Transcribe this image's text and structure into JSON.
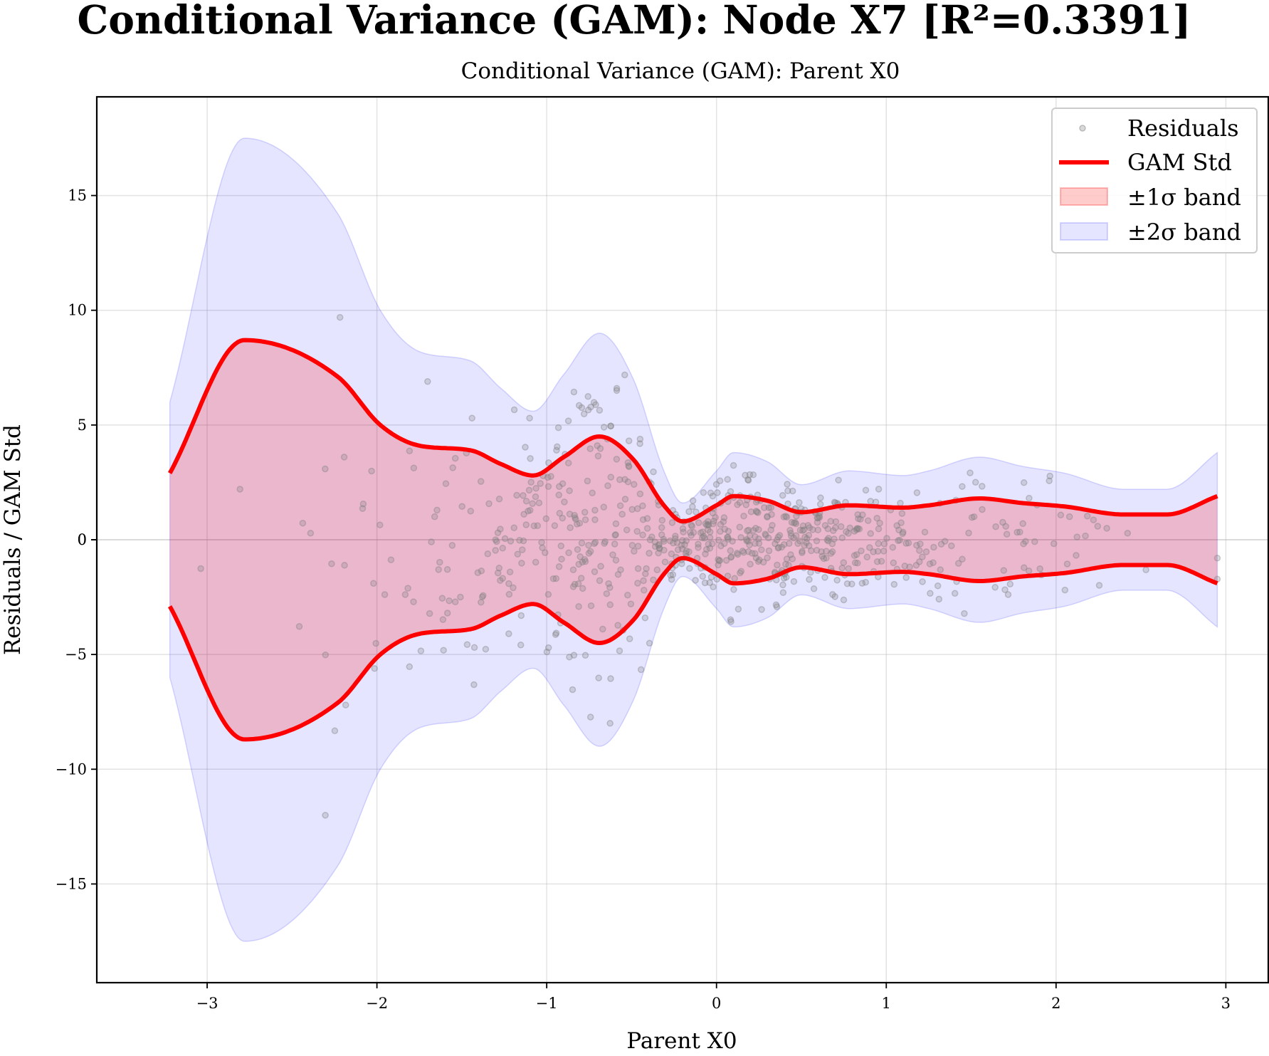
{
  "figure": {
    "suptitle": "Conditional Variance (GAM): Node X7 [R²=0.3391]"
  },
  "chart_data": {
    "type": "scatter",
    "title": "Conditional Variance (GAM): Parent X0",
    "xlabel": "Parent X0",
    "ylabel": "Residuals / GAM Std",
    "xlim": [
      -3.65,
      3.25
    ],
    "ylim": [
      -19.3,
      19.3
    ],
    "grid": true,
    "legend_position": "upper right",
    "xticks": [
      -3,
      -2,
      -1,
      0,
      1,
      2,
      3
    ],
    "xtick_labels": [
      "−3",
      "−2",
      "−1",
      "0",
      "1",
      "2",
      "3"
    ],
    "yticks": [
      -15,
      -10,
      -5,
      0,
      5,
      10,
      15
    ],
    "ytick_labels": [
      "−15",
      "−10",
      "−5",
      "0",
      "5",
      "10",
      "15"
    ],
    "legend": [
      {
        "label": "Residuals",
        "kind": "marker"
      },
      {
        "label": "GAM Std",
        "kind": "line"
      },
      {
        "label": "±1σ band",
        "kind": "patch-red"
      },
      {
        "label": "±2σ band",
        "kind": "patch-blue"
      }
    ],
    "colors": {
      "gam_std": "#ff0000",
      "band1": "#ff0000",
      "band2": "#0000ff",
      "residuals": "#808080"
    },
    "gam_std": {
      "x": [
        -3.22,
        -2.78,
        -2.23,
        -1.98,
        -1.75,
        -1.45,
        -1.27,
        -1.08,
        -0.9,
        -0.69,
        -0.49,
        -0.31,
        -0.2,
        0,
        0.1,
        0.3,
        0.5,
        0.78,
        1.1,
        1.25,
        1.55,
        1.8,
        2.05,
        2.4,
        2.65,
        2.95
      ],
      "y": [
        2.9,
        8.7,
        7.1,
        5.0,
        4.1,
        3.9,
        3.3,
        2.8,
        3.6,
        4.5,
        3.5,
        1.5,
        0.8,
        1.5,
        1.9,
        1.7,
        1.2,
        1.5,
        1.4,
        1.5,
        1.8,
        1.6,
        1.45,
        1.1,
        1.1,
        1.9
      ]
    },
    "band2_half_width": [
      6.0,
      17.5,
      14.2,
      10.0,
      8.2,
      7.8,
      6.6,
      5.6,
      7.2,
      9.0,
      7.0,
      3.0,
      1.6,
      3.0,
      3.8,
      3.4,
      2.4,
      3.0,
      2.8,
      3.0,
      3.6,
      3.2,
      2.9,
      2.2,
      2.2,
      3.8
    ],
    "residuals": {
      "count": 750,
      "seed": 7391,
      "x_range": [
        -3.22,
        2.95
      ],
      "marker": "circle"
    }
  }
}
